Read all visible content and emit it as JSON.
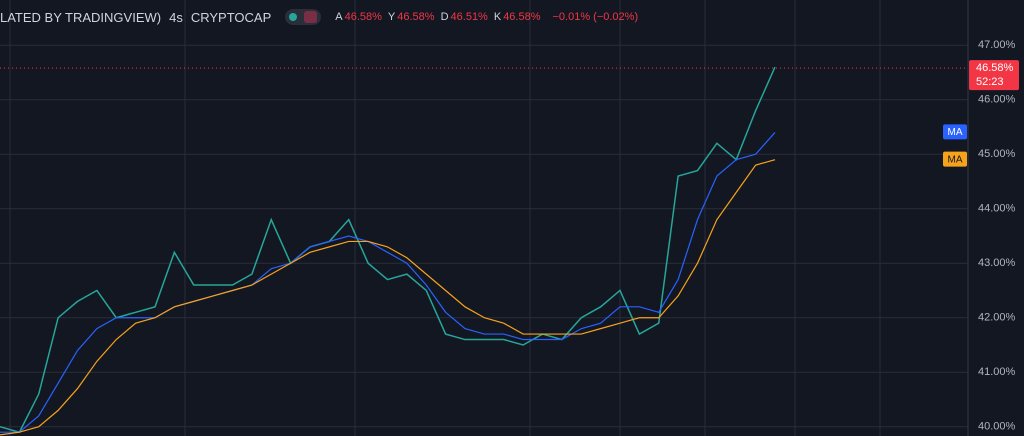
{
  "header": {
    "title": "LATED BY TRADINGVIEW)",
    "interval": "4s",
    "source": "CRYPTOCAP",
    "ohlc": [
      {
        "key": "A",
        "value": "46.58%"
      },
      {
        "key": "Y",
        "value": "46.58%"
      },
      {
        "key": "D",
        "value": "46.51%"
      },
      {
        "key": "K",
        "value": "46.58%"
      }
    ],
    "change": "−0.01% (−0.02%)"
  },
  "chart_data": {
    "type": "line",
    "series": [
      {
        "color": "#26a69a",
        "values": [
          40.0,
          39.9,
          40.6,
          42.0,
          42.3,
          42.5,
          42.0,
          42.1,
          42.2,
          43.2,
          42.6,
          42.6,
          42.6,
          42.8,
          43.8,
          43.0,
          43.3,
          43.4,
          43.8,
          43.0,
          42.7,
          42.8,
          42.5,
          41.7,
          41.6,
          41.6,
          41.6,
          41.5,
          41.7,
          41.6,
          42.0,
          42.2,
          42.5,
          41.7,
          41.9,
          44.6,
          44.7,
          45.2,
          44.9,
          45.8,
          46.6
        ]
      },
      {
        "name": "MA",
        "color": "#2962ff",
        "values": [
          39.9,
          39.9,
          40.2,
          40.8,
          41.4,
          41.8,
          42.0,
          42.0,
          42.0,
          42.2,
          42.3,
          42.4,
          42.5,
          42.6,
          42.9,
          43.0,
          43.3,
          43.4,
          43.5,
          43.4,
          43.2,
          43.0,
          42.6,
          42.1,
          41.8,
          41.7,
          41.7,
          41.6,
          41.6,
          41.6,
          41.8,
          41.9,
          42.2,
          42.2,
          42.1,
          42.7,
          43.8,
          44.6,
          44.9,
          45.0,
          45.4
        ]
      },
      {
        "name": "MA",
        "color": "#f7a21b",
        "values": [
          39.85,
          39.9,
          40.0,
          40.3,
          40.7,
          41.2,
          41.6,
          41.9,
          42.0,
          42.2,
          42.3,
          42.4,
          42.5,
          42.6,
          42.8,
          43.0,
          43.2,
          43.3,
          43.4,
          43.4,
          43.3,
          43.1,
          42.8,
          42.5,
          42.2,
          42.0,
          41.9,
          41.7,
          41.7,
          41.7,
          41.7,
          41.8,
          41.9,
          42.0,
          42.0,
          42.4,
          43.0,
          43.8,
          44.3,
          44.8,
          44.9
        ]
      }
    ],
    "ylim": [
      39.83,
      47.83
    ],
    "yticks": [
      {
        "value": 40,
        "label": "40.00%"
      },
      {
        "value": 41,
        "label": "41.00%"
      },
      {
        "value": 42,
        "label": "42.00%"
      },
      {
        "value": 43,
        "label": "43.00%"
      },
      {
        "value": 44,
        "label": "44.00%"
      },
      {
        "value": 45,
        "label": "45.00%"
      },
      {
        "value": 46,
        "label": "46.00%"
      },
      {
        "value": 47,
        "label": "47.00%"
      }
    ],
    "grid": true,
    "last_price": {
      "value": 46.58,
      "label": "46.58%"
    },
    "countdown": "52:23"
  }
}
